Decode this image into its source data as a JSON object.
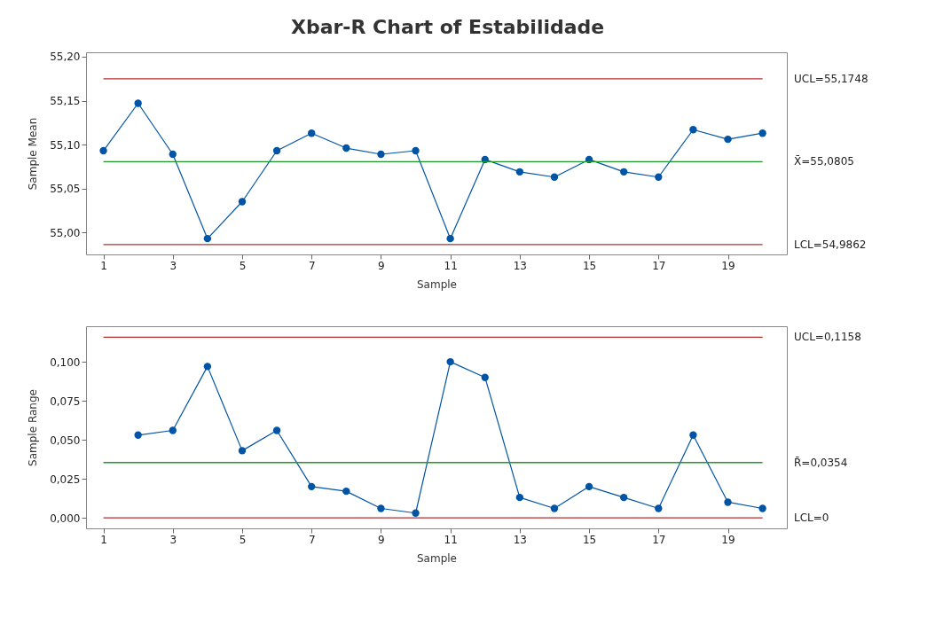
{
  "chart_data": [
    {
      "type": "line",
      "title": "Xbar-R Chart of Estabilidade",
      "xlabel": "Sample",
      "ylabel": "Sample Mean",
      "x": [
        1,
        2,
        3,
        4,
        5,
        6,
        7,
        8,
        9,
        10,
        11,
        12,
        13,
        14,
        15,
        16,
        17,
        18,
        19,
        20
      ],
      "series": [
        {
          "color": "#0054a6",
          "values": [
            55.093,
            55.147,
            55.089,
            54.993,
            55.035,
            55.093,
            55.113,
            55.096,
            55.089,
            55.093,
            54.993,
            55.083,
            55.069,
            55.063,
            55.083,
            55.069,
            55.063,
            55.117,
            55.106,
            55.113
          ]
        }
      ],
      "xlim": [
        0.5,
        20.7
      ],
      "xticks": [
        1,
        3,
        5,
        7,
        9,
        11,
        13,
        15,
        17,
        19
      ],
      "ylim": [
        54.975,
        55.205
      ],
      "yticks": [
        {
          "value": 55.0,
          "label": "55,00"
        },
        {
          "value": 55.05,
          "label": "55,05"
        },
        {
          "value": 55.1,
          "label": "55,10"
        },
        {
          "value": 55.15,
          "label": "55,15"
        },
        {
          "value": 55.2,
          "label": "55,20"
        }
      ],
      "ref_lines": [
        {
          "axis": "y",
          "value": 55.1748,
          "label": "UCL=55,1748",
          "color": "#b03030"
        },
        {
          "axis": "y",
          "value": 55.0805,
          "label": "X̄=55,0805",
          "color": "#1e9a2a"
        },
        {
          "axis": "y",
          "value": 54.9862,
          "label": "LCL=54,9862",
          "color": "#b03030"
        }
      ],
      "marker": "circle",
      "line_style": "solid",
      "grid": false,
      "legend": false
    },
    {
      "type": "line",
      "xlabel": "Sample",
      "ylabel": "Sample Range",
      "series": [
        {
          "color": "#0054a6",
          "x": [
            2,
            3,
            4,
            5,
            6,
            7,
            8,
            9,
            10,
            11,
            12,
            13,
            14,
            15,
            16,
            17,
            18,
            19,
            20
          ],
          "values": [
            0.053,
            0.056,
            0.097,
            0.043,
            0.056,
            0.02,
            0.017,
            0.006,
            0.003,
            0.1,
            0.09,
            0.013,
            0.006,
            0.02,
            0.013,
            0.006,
            0.053,
            0.01,
            0.006
          ]
        }
      ],
      "xlim": [
        0.5,
        20.7
      ],
      "xticks": [
        1,
        3,
        5,
        7,
        9,
        11,
        13,
        15,
        17,
        19
      ],
      "ylim": [
        -0.0068,
        0.1228
      ],
      "yticks": [
        {
          "value": 0.0,
          "label": "0,000"
        },
        {
          "value": 0.025,
          "label": "0,025"
        },
        {
          "value": 0.05,
          "label": "0,050"
        },
        {
          "value": 0.075,
          "label": "0,075"
        },
        {
          "value": 0.1,
          "label": "0,100"
        }
      ],
      "ref_lines": [
        {
          "axis": "y",
          "value": 0.1158,
          "label": "UCL=0,1158",
          "color": "#b03030"
        },
        {
          "axis": "y",
          "value": 0.0354,
          "label": "R̄=0,0354",
          "color": "#1e9a2a"
        },
        {
          "axis": "y",
          "value": 0,
          "label": "LCL=0",
          "color": "#b03030"
        }
      ],
      "marker": "circle",
      "line_style": "solid",
      "grid": false,
      "legend": false
    }
  ]
}
